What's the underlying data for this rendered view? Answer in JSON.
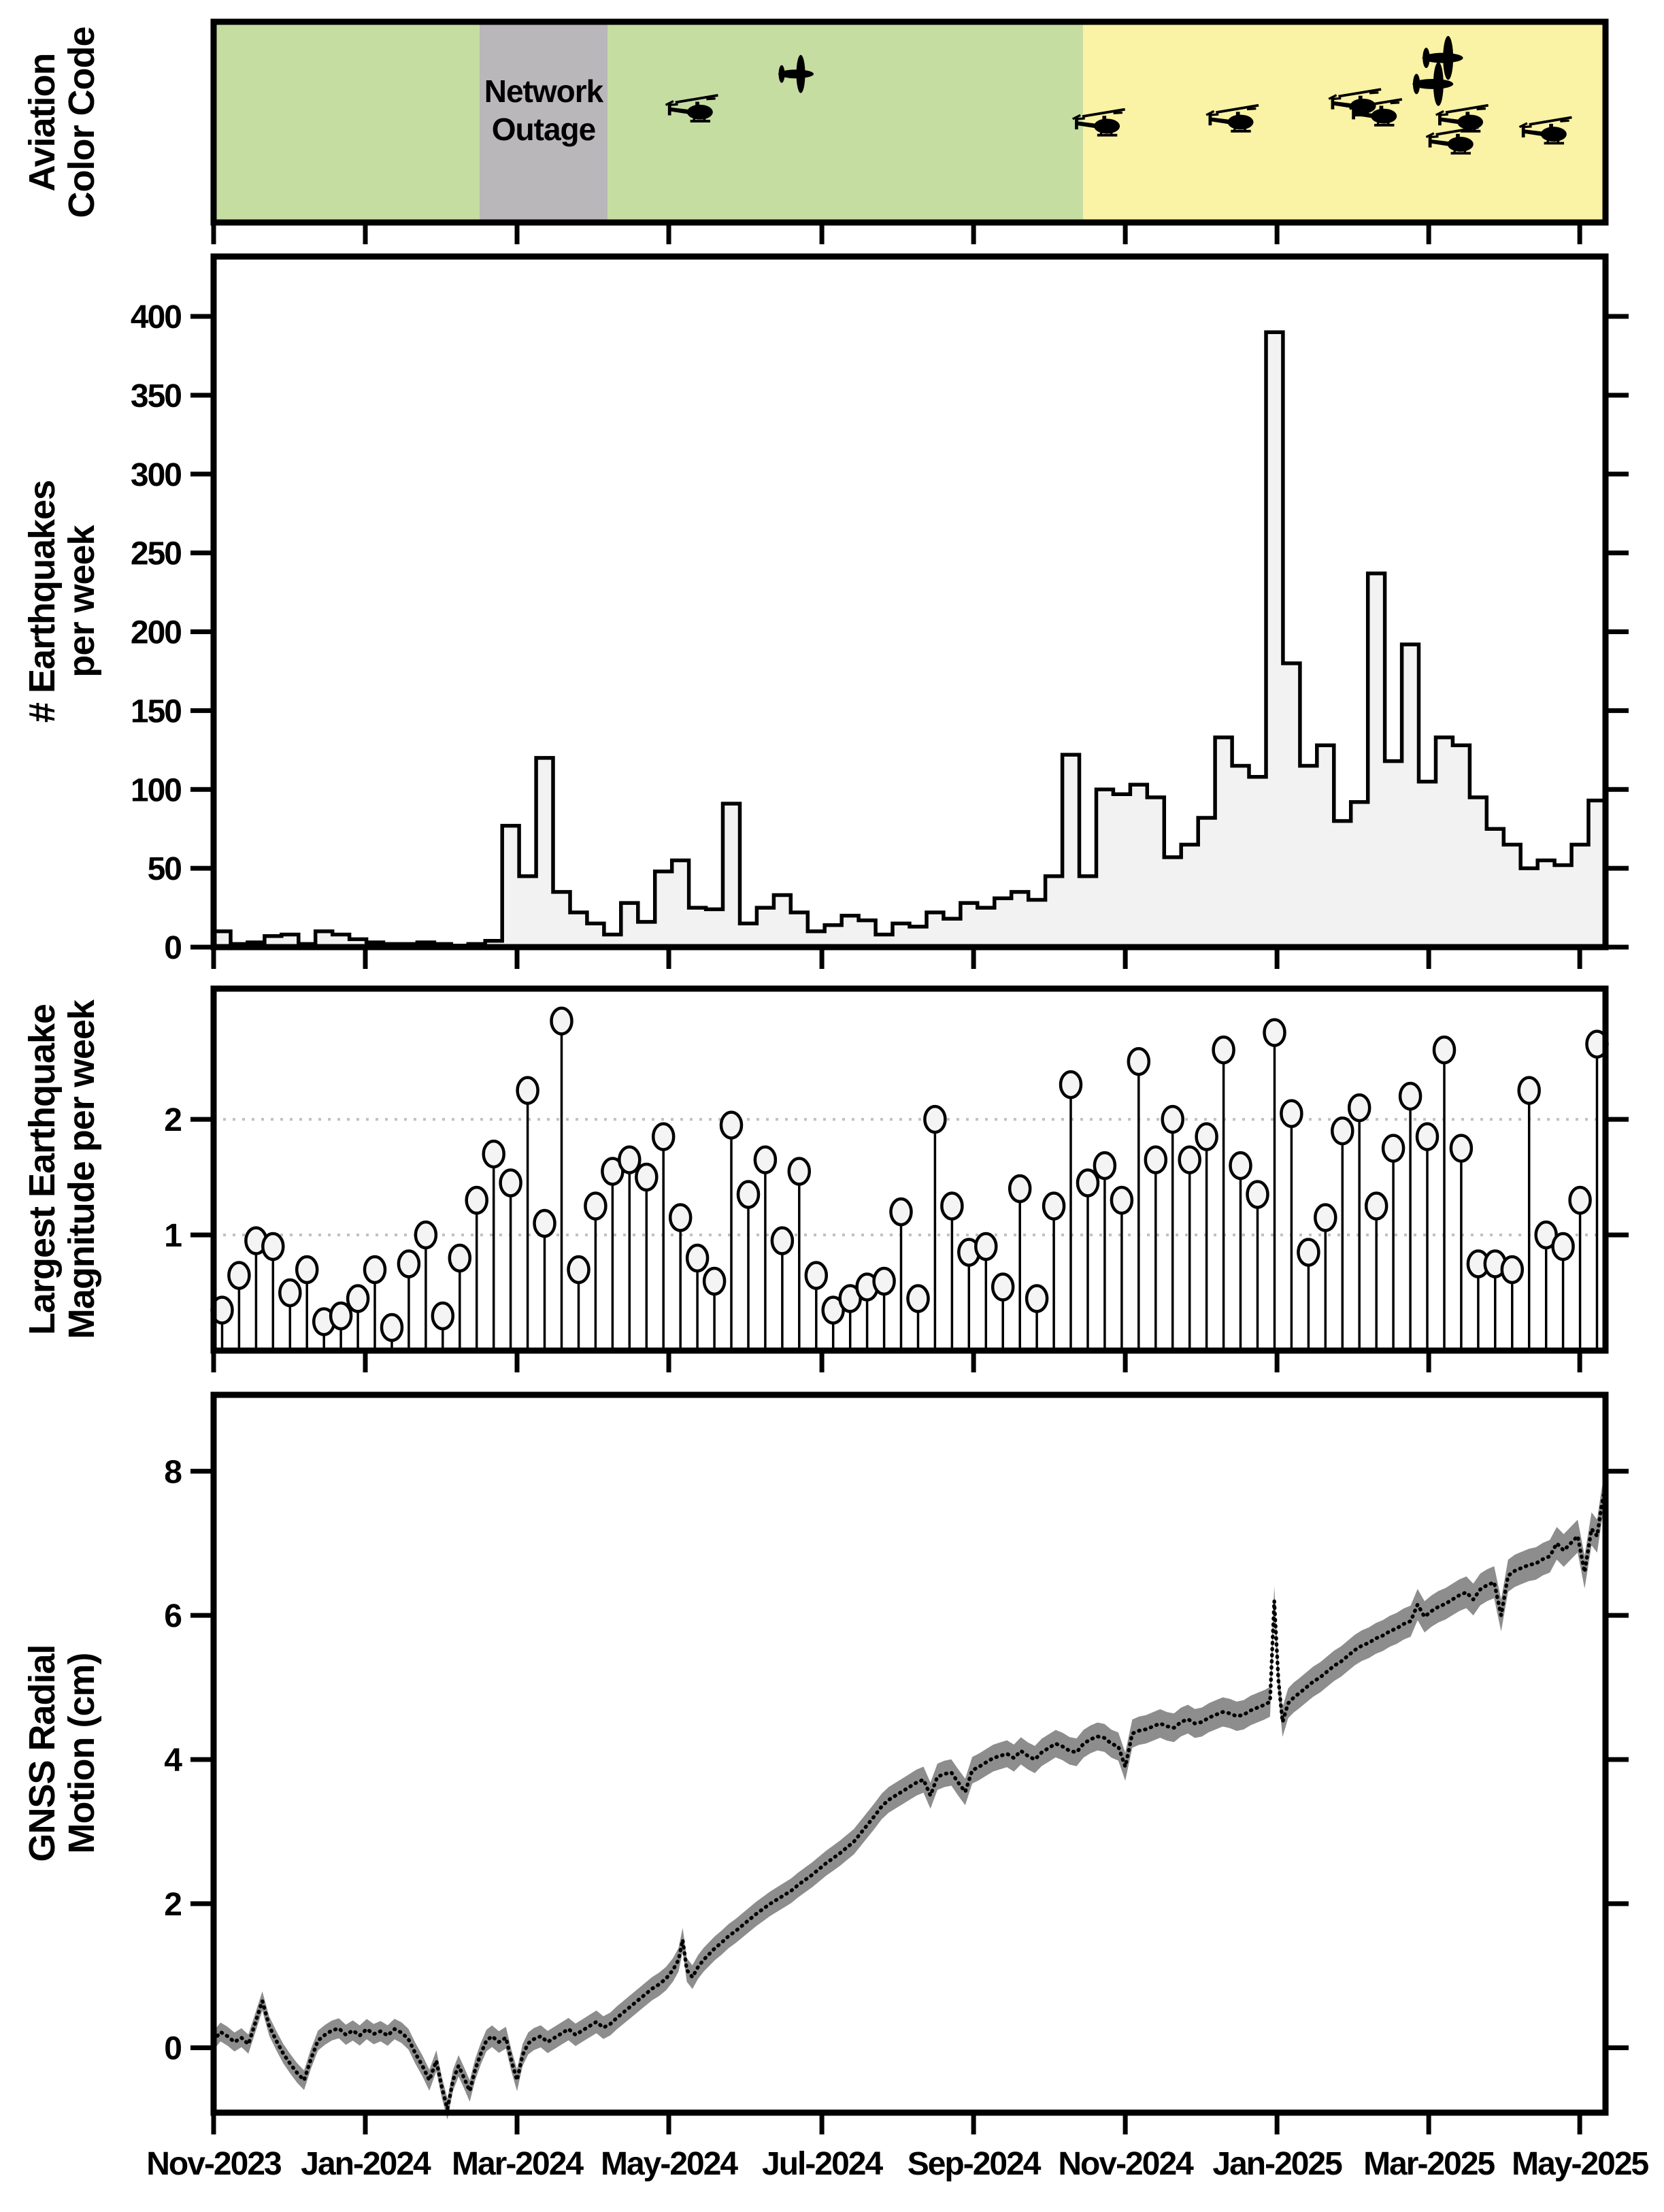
{
  "colors": {
    "green": "#c6dda2",
    "yellow": "#faf2a4",
    "gray": "#b9b7b9",
    "hist_fill": "#f2f2f2",
    "stem_fill": "#f4f4f4",
    "band_gray": "#8d8d8d",
    "grid_dotted": "#c0c0c0",
    "ink": "#000000"
  },
  "x_axis": {
    "labels": [
      "Nov-2023",
      "Jan-2024",
      "Mar-2024",
      "May-2024",
      "Jul-2024",
      "Sep-2024",
      "Nov-2024",
      "Jan-2025",
      "Mar-2025",
      "May-2025"
    ],
    "positions": [
      0.0,
      0.109,
      0.218,
      0.327,
      0.437,
      0.546,
      0.655,
      0.764,
      0.873,
      0.9815
    ]
  },
  "panels": {
    "aviation": {
      "title1": "Aviation",
      "title2": "Color Code",
      "outage1": "Network",
      "outage2": "Outage"
    },
    "earthquakes": {
      "title1": "# Earthquakes",
      "title2": "per week",
      "yticks": [
        0,
        50,
        100,
        150,
        200,
        250,
        300,
        350,
        400
      ]
    },
    "magnitude": {
      "title1": "Largest Earthquake",
      "title2": "Magnitude per week",
      "yticks": [
        1,
        2
      ]
    },
    "gnss": {
      "title1": "GNSS Radial",
      "title2": "Motion (cm)",
      "yticks": [
        0,
        2,
        4,
        6,
        8
      ]
    }
  },
  "chart_data": [
    {
      "type": "heatmap",
      "name": "aviation-color-code",
      "segments": [
        {
          "from": 0.0,
          "to": 0.191,
          "color_key": "green",
          "label": "GREEN"
        },
        {
          "from": 0.191,
          "to": 0.283,
          "color_key": "gray",
          "label": "Network Outage"
        },
        {
          "from": 0.283,
          "to": 0.6246,
          "color_key": "green",
          "label": "GREEN"
        },
        {
          "from": 0.6246,
          "to": 1.0,
          "color_key": "yellow",
          "label": "YELLOW"
        }
      ],
      "icons": [
        {
          "kind": "helicopter",
          "p": 0.3466,
          "fy": 0.45,
          "s": 0.95
        },
        {
          "kind": "airplane",
          "p": 0.4184,
          "fy": 0.26,
          "s": 1.0
        },
        {
          "kind": "helicopter",
          "p": 0.639,
          "fy": 0.52,
          "s": 0.95
        },
        {
          "kind": "helicopter",
          "p": 0.735,
          "fy": 0.5,
          "s": 0.95
        },
        {
          "kind": "helicopter",
          "p": 0.823,
          "fy": 0.42,
          "s": 0.95
        },
        {
          "kind": "helicopter",
          "p": 0.838,
          "fy": 0.47,
          "s": 0.95
        },
        {
          "kind": "airplane",
          "p": 0.876,
          "fy": 0.31,
          "s": 1.15
        },
        {
          "kind": "airplane",
          "p": 0.883,
          "fy": 0.18,
          "s": 1.15
        },
        {
          "kind": "helicopter",
          "p": 0.893,
          "fy": 0.61,
          "s": 0.95
        },
        {
          "kind": "helicopter",
          "p": 0.9,
          "fy": 0.5,
          "s": 0.95
        },
        {
          "kind": "helicopter",
          "p": 0.96,
          "fy": 0.56,
          "s": 0.95
        }
      ]
    },
    {
      "type": "bar",
      "name": "earthquakes-per-week",
      "title": "# Earthquakes per week",
      "ylim": [
        0,
        438
      ],
      "values": [
        10,
        2,
        3,
        7,
        8,
        2,
        10,
        8,
        5,
        3,
        2,
        2,
        3,
        2,
        1,
        2,
        4,
        77,
        45,
        120,
        35,
        22,
        15,
        8,
        28,
        16,
        48,
        55,
        25,
        24,
        91,
        15,
        25,
        33,
        22,
        10,
        14,
        20,
        17,
        8,
        15,
        13,
        22,
        18,
        28,
        25,
        31,
        35,
        30,
        45,
        122,
        45,
        100,
        97,
        103,
        95,
        57,
        65,
        82,
        133,
        115,
        108,
        390,
        180,
        115,
        128,
        80,
        92,
        237,
        118,
        192,
        105,
        133,
        128,
        95,
        75,
        65,
        50,
        55,
        52,
        65,
        93
      ]
    },
    {
      "type": "stem",
      "name": "largest-earthquake-magnitude-per-week",
      "title": "Largest Earthquake Magnitude per week",
      "ylim": [
        0,
        3.13
      ],
      "gridlines": [
        1,
        2
      ],
      "values": [
        0.35,
        0.65,
        0.95,
        0.9,
        0.5,
        0.7,
        0.25,
        0.3,
        0.45,
        0.7,
        0.2,
        0.75,
        1.0,
        0.3,
        0.8,
        1.3,
        1.7,
        1.45,
        2.25,
        1.1,
        2.85,
        0.7,
        1.25,
        1.55,
        1.65,
        1.5,
        1.85,
        1.15,
        0.8,
        0.6,
        1.95,
        1.35,
        1.65,
        0.95,
        1.55,
        0.65,
        0.35,
        0.45,
        0.55,
        0.6,
        1.2,
        0.45,
        2.0,
        1.25,
        0.85,
        0.9,
        0.55,
        1.4,
        0.45,
        1.25,
        2.3,
        1.45,
        1.6,
        1.3,
        2.5,
        1.65,
        2.0,
        1.65,
        1.85,
        2.6,
        1.6,
        1.35,
        2.75,
        2.05,
        0.85,
        1.15,
        1.9,
        2.1,
        1.25,
        1.75,
        2.2,
        1.85,
        2.6,
        1.75,
        0.75,
        0.75,
        0.7,
        2.25,
        1.0,
        0.9,
        1.3,
        2.65
      ]
    },
    {
      "type": "line",
      "name": "gnss-radial-motion",
      "title": "GNSS Radial Motion (cm)",
      "ylim": [
        -0.9,
        9.06
      ],
      "band_halfwidth": [
        0.13,
        0.23
      ],
      "points": [
        [
          0.0,
          0.1
        ],
        [
          0.005,
          0.22
        ],
        [
          0.01,
          0.16
        ],
        [
          0.015,
          0.08
        ],
        [
          0.02,
          0.14
        ],
        [
          0.025,
          0.05
        ],
        [
          0.03,
          0.35
        ],
        [
          0.035,
          0.65
        ],
        [
          0.04,
          0.3
        ],
        [
          0.045,
          0.1
        ],
        [
          0.05,
          -0.08
        ],
        [
          0.055,
          -0.22
        ],
        [
          0.06,
          -0.35
        ],
        [
          0.065,
          -0.45
        ],
        [
          0.07,
          -0.15
        ],
        [
          0.075,
          0.1
        ],
        [
          0.08,
          0.18
        ],
        [
          0.085,
          0.24
        ],
        [
          0.09,
          0.27
        ],
        [
          0.095,
          0.18
        ],
        [
          0.1,
          0.24
        ],
        [
          0.105,
          0.17
        ],
        [
          0.11,
          0.26
        ],
        [
          0.115,
          0.19
        ],
        [
          0.12,
          0.23
        ],
        [
          0.125,
          0.17
        ],
        [
          0.13,
          0.26
        ],
        [
          0.135,
          0.21
        ],
        [
          0.14,
          0.12
        ],
        [
          0.145,
          -0.08
        ],
        [
          0.15,
          -0.25
        ],
        [
          0.155,
          -0.45
        ],
        [
          0.16,
          -0.18
        ],
        [
          0.164,
          -0.55
        ],
        [
          0.168,
          -0.85
        ],
        [
          0.172,
          -0.45
        ],
        [
          0.176,
          -0.25
        ],
        [
          0.18,
          -0.42
        ],
        [
          0.184,
          -0.6
        ],
        [
          0.188,
          -0.3
        ],
        [
          0.192,
          -0.08
        ],
        [
          0.196,
          0.1
        ],
        [
          0.2,
          0.16
        ],
        [
          0.205,
          0.08
        ],
        [
          0.21,
          0.14
        ],
        [
          0.214,
          -0.18
        ],
        [
          0.218,
          -0.45
        ],
        [
          0.222,
          -0.1
        ],
        [
          0.226,
          0.06
        ],
        [
          0.23,
          0.12
        ],
        [
          0.235,
          0.16
        ],
        [
          0.24,
          0.08
        ],
        [
          0.245,
          0.14
        ],
        [
          0.25,
          0.2
        ],
        [
          0.255,
          0.26
        ],
        [
          0.26,
          0.18
        ],
        [
          0.265,
          0.24
        ],
        [
          0.27,
          0.3
        ],
        [
          0.275,
          0.36
        ],
        [
          0.28,
          0.28
        ],
        [
          0.285,
          0.33
        ],
        [
          0.29,
          0.42
        ],
        [
          0.295,
          0.5
        ],
        [
          0.3,
          0.58
        ],
        [
          0.305,
          0.66
        ],
        [
          0.31,
          0.74
        ],
        [
          0.315,
          0.82
        ],
        [
          0.32,
          0.88
        ],
        [
          0.325,
          0.96
        ],
        [
          0.33,
          1.08
        ],
        [
          0.334,
          1.22
        ],
        [
          0.337,
          1.5
        ],
        [
          0.34,
          1.08
        ],
        [
          0.344,
          0.98
        ],
        [
          0.348,
          1.12
        ],
        [
          0.352,
          1.22
        ],
        [
          0.356,
          1.3
        ],
        [
          0.36,
          1.38
        ],
        [
          0.365,
          1.46
        ],
        [
          0.37,
          1.55
        ],
        [
          0.375,
          1.62
        ],
        [
          0.38,
          1.7
        ],
        [
          0.385,
          1.78
        ],
        [
          0.39,
          1.86
        ],
        [
          0.395,
          1.93
        ],
        [
          0.4,
          2.0
        ],
        [
          0.405,
          2.06
        ],
        [
          0.41,
          2.12
        ],
        [
          0.415,
          2.18
        ],
        [
          0.42,
          2.26
        ],
        [
          0.425,
          2.33
        ],
        [
          0.43,
          2.4
        ],
        [
          0.435,
          2.48
        ],
        [
          0.44,
          2.56
        ],
        [
          0.445,
          2.63
        ],
        [
          0.45,
          2.7
        ],
        [
          0.455,
          2.78
        ],
        [
          0.46,
          2.86
        ],
        [
          0.465,
          2.98
        ],
        [
          0.47,
          3.1
        ],
        [
          0.475,
          3.22
        ],
        [
          0.48,
          3.35
        ],
        [
          0.485,
          3.44
        ],
        [
          0.49,
          3.5
        ],
        [
          0.495,
          3.56
        ],
        [
          0.5,
          3.62
        ],
        [
          0.505,
          3.68
        ],
        [
          0.51,
          3.72
        ],
        [
          0.515,
          3.5
        ],
        [
          0.52,
          3.76
        ],
        [
          0.525,
          3.8
        ],
        [
          0.53,
          3.82
        ],
        [
          0.535,
          3.68
        ],
        [
          0.54,
          3.55
        ],
        [
          0.545,
          3.85
        ],
        [
          0.55,
          3.9
        ],
        [
          0.555,
          3.96
        ],
        [
          0.56,
          4.02
        ],
        [
          0.565,
          4.05
        ],
        [
          0.57,
          4.08
        ],
        [
          0.575,
          4.02
        ],
        [
          0.58,
          4.12
        ],
        [
          0.585,
          4.05
        ],
        [
          0.59,
          4.0
        ],
        [
          0.595,
          4.1
        ],
        [
          0.6,
          4.16
        ],
        [
          0.605,
          4.22
        ],
        [
          0.61,
          4.18
        ],
        [
          0.615,
          4.12
        ],
        [
          0.62,
          4.1
        ],
        [
          0.625,
          4.22
        ],
        [
          0.63,
          4.28
        ],
        [
          0.635,
          4.32
        ],
        [
          0.64,
          4.3
        ],
        [
          0.645,
          4.22
        ],
        [
          0.65,
          4.18
        ],
        [
          0.655,
          3.9
        ],
        [
          0.66,
          4.36
        ],
        [
          0.665,
          4.4
        ],
        [
          0.67,
          4.42
        ],
        [
          0.675,
          4.46
        ],
        [
          0.68,
          4.5
        ],
        [
          0.685,
          4.46
        ],
        [
          0.69,
          4.44
        ],
        [
          0.695,
          4.52
        ],
        [
          0.7,
          4.56
        ],
        [
          0.705,
          4.5
        ],
        [
          0.71,
          4.52
        ],
        [
          0.715,
          4.58
        ],
        [
          0.72,
          4.62
        ],
        [
          0.725,
          4.66
        ],
        [
          0.73,
          4.64
        ],
        [
          0.735,
          4.6
        ],
        [
          0.74,
          4.62
        ],
        [
          0.745,
          4.68
        ],
        [
          0.75,
          4.72
        ],
        [
          0.755,
          4.76
        ],
        [
          0.759,
          4.8
        ],
        [
          0.762,
          6.2
        ],
        [
          0.765,
          5.1
        ],
        [
          0.768,
          4.52
        ],
        [
          0.772,
          4.78
        ],
        [
          0.776,
          4.86
        ],
        [
          0.78,
          4.92
        ],
        [
          0.785,
          5.0
        ],
        [
          0.79,
          5.08
        ],
        [
          0.795,
          5.14
        ],
        [
          0.8,
          5.22
        ],
        [
          0.805,
          5.3
        ],
        [
          0.81,
          5.36
        ],
        [
          0.815,
          5.44
        ],
        [
          0.82,
          5.52
        ],
        [
          0.825,
          5.58
        ],
        [
          0.83,
          5.62
        ],
        [
          0.835,
          5.68
        ],
        [
          0.84,
          5.72
        ],
        [
          0.845,
          5.78
        ],
        [
          0.85,
          5.82
        ],
        [
          0.855,
          5.88
        ],
        [
          0.86,
          5.92
        ],
        [
          0.865,
          6.15
        ],
        [
          0.87,
          5.98
        ],
        [
          0.875,
          6.06
        ],
        [
          0.88,
          6.12
        ],
        [
          0.885,
          6.16
        ],
        [
          0.89,
          6.22
        ],
        [
          0.895,
          6.28
        ],
        [
          0.9,
          6.32
        ],
        [
          0.905,
          6.22
        ],
        [
          0.91,
          6.36
        ],
        [
          0.915,
          6.42
        ],
        [
          0.92,
          6.46
        ],
        [
          0.925,
          6.0
        ],
        [
          0.93,
          6.55
        ],
        [
          0.935,
          6.62
        ],
        [
          0.94,
          6.66
        ],
        [
          0.945,
          6.7
        ],
        [
          0.95,
          6.72
        ],
        [
          0.955,
          6.78
        ],
        [
          0.96,
          6.82
        ],
        [
          0.965,
          7.0
        ],
        [
          0.97,
          6.9
        ],
        [
          0.975,
          7.0
        ],
        [
          0.98,
          7.1
        ],
        [
          0.985,
          6.6
        ],
        [
          0.99,
          7.2
        ],
        [
          0.994,
          7.1
        ],
        [
          0.997,
          7.5
        ],
        [
          1.0,
          7.8
        ]
      ]
    }
  ]
}
